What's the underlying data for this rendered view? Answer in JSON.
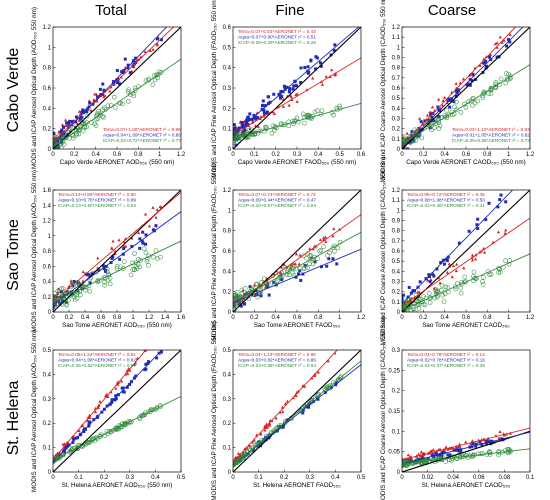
{
  "colors": {
    "terra": "#d62424",
    "aqua": "#1f2bb8",
    "icap": "#2f8a3a",
    "oneToOne": "#000000"
  },
  "columns": [
    {
      "title": "Total"
    },
    {
      "title": "Fine"
    },
    {
      "title": "Coarse"
    }
  ],
  "rows": [
    {
      "title": "Cabo Verde"
    },
    {
      "title": "Sao Tome"
    },
    {
      "title": "St. Helena"
    }
  ],
  "chart_data": [
    {
      "type": "scatter",
      "row": 0,
      "col": 0,
      "xlabel": "Capo Verde AERONET AOD₅₅₀ (550 nm)",
      "ylabel": "MODIS and ICAP Aerosol Optical Depth (AOD₅₅₀ 550 nm)",
      "xlim": [
        0,
        1.2
      ],
      "ylim": [
        0,
        1.2
      ],
      "xticks": [
        "0",
        "0.2",
        "0.4",
        "0.6",
        "0.8",
        "1",
        "1.2"
      ],
      "yticks": [
        "0",
        "0.2",
        "0.4",
        "0.6",
        "0.8",
        "1",
        "1.2"
      ],
      "legend_position": "bottom-right",
      "series": [
        {
          "name": "Terra=0.07+1.00*AERONET r² = 0.86",
          "color": "terra",
          "fit": [
            0.07,
            1.0
          ],
          "count": 70,
          "spread": 0.09
        },
        {
          "name": "Aqua=0.04+1.09*AERONET r² = 0.86",
          "color": "aqua",
          "fit": [
            0.04,
            1.09
          ],
          "count": 70,
          "spread": 0.09
        },
        {
          "name": "ICAP=0.02+0.72*AERONET r² = 0.77",
          "color": "icap",
          "fit": [
            0.02,
            0.72
          ],
          "count": 110,
          "spread": 0.08
        }
      ]
    },
    {
      "type": "scatter",
      "row": 0,
      "col": 1,
      "xlabel": "Capo Verde AERONET FAOD₅₅₀ (550 nm)",
      "ylabel": "MODIS and ICAP Fine Aerosol Optical Depth (FAOD₅₅₀ 550 nm)",
      "xlim": [
        0,
        0.6
      ],
      "ylim": [
        0,
        0.6
      ],
      "xticks": [
        "0",
        "0.1",
        "0.2",
        "0.3",
        "0.4",
        "0.5",
        "0.6"
      ],
      "yticks": [
        "0",
        "0.1",
        "0.2",
        "0.3",
        "0.4",
        "0.5",
        "0.6"
      ],
      "legend_position": "top-left",
      "series": [
        {
          "name": "Terra=0.07+0.63*AERONET r² = 0.43",
          "color": "terra",
          "fit": [
            0.07,
            0.63
          ],
          "count": 60,
          "spread": 0.08
        },
        {
          "name": "Aqua=0.07+0.90*AERONET r² = 0.51",
          "color": "aqua",
          "fit": [
            0.07,
            0.9
          ],
          "count": 90,
          "spread": 0.1
        },
        {
          "name": "ICAP=0.05+0.29*AERONET r² = 0.26",
          "color": "icap",
          "fit": [
            0.05,
            0.29
          ],
          "count": 90,
          "spread": 0.05
        }
      ]
    },
    {
      "type": "scatter",
      "row": 0,
      "col": 2,
      "xlabel": "Capo Verde AERONET CAOD₅₅₀ (550 nm)",
      "ylabel": "MODIS and ICAP Coarse Aerosol Optical Depth (CAOD₅₅₀ 550 nm)",
      "xlim": [
        0,
        1.2
      ],
      "ylim": [
        0,
        1.2
      ],
      "xticks": [
        "0",
        "0.2",
        "0.4",
        "0.6",
        "0.8",
        "1",
        "1.2"
      ],
      "yticks": [
        "0",
        "0.1",
        "0.2",
        "0.3",
        "0.4",
        "0.5",
        "0.6",
        "0.7",
        "0.8",
        "0.9",
        "1",
        "1.1",
        "1.2"
      ],
      "legend_position": "bottom-right",
      "series": [
        {
          "name": "Terra=0.03+1.10*AERONET r² = 0.83",
          "color": "terra",
          "fit": [
            0.03,
            1.1
          ],
          "count": 70,
          "spread": 0.08
        },
        {
          "name": "Aqua=0.01+1.05*AERONET r² = 0.82",
          "color": "aqua",
          "fit": [
            0.01,
            1.05
          ],
          "count": 70,
          "spread": 0.08
        },
        {
          "name": "ICAP=0.05+0.65*AERONET r² = 0.73",
          "color": "icap",
          "fit": [
            0.05,
            0.65
          ],
          "count": 110,
          "spread": 0.07
        }
      ]
    },
    {
      "type": "scatter",
      "row": 1,
      "col": 0,
      "xlabel": "Sao Tome AERONET AOD₅₅₀ (550 nm)",
      "ylabel": "MODIS and ICAP Aerosol Optical Depth (AOD₅₅₀ 550 nm)",
      "xlim": [
        0,
        1.6
      ],
      "ylim": [
        0,
        1.6
      ],
      "xticks": [
        "0",
        "0.2",
        "0.4",
        "0.6",
        "0.8",
        "1",
        "1.2",
        "1.4",
        "1.6"
      ],
      "yticks": [
        "0",
        "0.2",
        "0.4",
        "0.6",
        "0.8",
        "1",
        "1.2",
        "1.4",
        "1.6"
      ],
      "legend_position": "top-left",
      "series": [
        {
          "name": "Terra=0.13+0.90*AERONET r² = 0.80",
          "color": "terra",
          "fit": [
            0.13,
            0.9
          ],
          "count": 50,
          "spread": 0.1
        },
        {
          "name": "Aqua=0.10+0.76*AERONET r² = 0.89",
          "color": "aqua",
          "fit": [
            0.1,
            0.76
          ],
          "count": 50,
          "spread": 0.08
        },
        {
          "name": "ICAP=0.13+0.50*AERONET r² = 0.63",
          "color": "icap",
          "fit": [
            0.13,
            0.5
          ],
          "count": 110,
          "spread": 0.1
        }
      ]
    },
    {
      "type": "scatter",
      "row": 1,
      "col": 1,
      "xlabel": "Sao Tome AERONET FAOD₅₅₀",
      "ylabel": "MODIS and ICAP Fine Aerosol Optical Depth (FAOD₅₅₀ 550 nm)",
      "xlim": [
        0,
        1.2
      ],
      "ylim": [
        0,
        1.2
      ],
      "xticks": [
        "0",
        "0.2",
        "0.4",
        "0.6",
        "0.8",
        "1",
        "1.2"
      ],
      "yticks": [
        "0",
        "0.2",
        "0.4",
        "0.6",
        "0.8",
        "1",
        "1.2"
      ],
      "legend_position": "top-left",
      "series": [
        {
          "name": "Terra=0.07+0.74*AERONET r² = 0.74",
          "color": "terra",
          "fit": [
            0.07,
            0.74
          ],
          "count": 50,
          "spread": 0.08
        },
        {
          "name": "Aqua=0.09+0.44*AERONET r² = 0.47",
          "color": "aqua",
          "fit": [
            0.09,
            0.44
          ],
          "count": 40,
          "spread": 0.08
        },
        {
          "name": "ICAP=0.10+0.57*AERONET r² = 0.53",
          "color": "icap",
          "fit": [
            0.1,
            0.57
          ],
          "count": 110,
          "spread": 0.09
        }
      ]
    },
    {
      "type": "scatter",
      "row": 1,
      "col": 2,
      "xlabel": "Sao Tome AERONET CAOD₅₅₀",
      "ylabel": "MODIS and ICAP Coarse Aerosol Optical Depth (CAOD₅₅₀ 550 nm)",
      "xlim": [
        0,
        1.2
      ],
      "ylim": [
        0,
        1.2
      ],
      "xticks": [
        "0",
        "0.2",
        "0.4",
        "0.6",
        "0.8",
        "1",
        "1.2"
      ],
      "yticks": [
        "0",
        "0.1",
        "0.2",
        "0.3",
        "0.4",
        "0.5",
        "0.6",
        "0.7",
        "0.8",
        "0.9",
        "1",
        "1.1",
        "1.2"
      ],
      "legend_position": "top-left",
      "series": [
        {
          "name": "Terra=0.06+0.72*AERONET r² = 0.45",
          "color": "terra",
          "fit": [
            0.06,
            0.72
          ],
          "count": 45,
          "spread": 0.09
        },
        {
          "name": "Aqua=0.08+1.08*AERONET r² = 0.50",
          "color": "aqua",
          "fit": [
            0.08,
            1.08
          ],
          "count": 40,
          "spread": 0.1
        },
        {
          "name": "ICAP=0.02+0.46*AERONET r² = 0.41",
          "color": "icap",
          "fit": [
            0.02,
            0.46
          ],
          "count": 110,
          "spread": 0.08
        }
      ]
    },
    {
      "type": "scatter",
      "row": 2,
      "col": 0,
      "xlabel": "St. Helena AERONET AOD₅₅₀ (550 nm)",
      "ylabel": "MODIS and ICAP Aerosol Optical Depth (AOD₅₅₀ 550 nm)",
      "xlim": [
        0,
        0.5
      ],
      "ylim": [
        0,
        0.5
      ],
      "xticks": [
        "0",
        "0.1",
        "0.2",
        "0.3",
        "0.4",
        "0.5"
      ],
      "yticks": [
        "0",
        "0.1",
        "0.2",
        "0.3",
        "0.4",
        "0.5"
      ],
      "legend_position": "top-left",
      "series": [
        {
          "name": "Terra=0.05+1.24*AERONET r² = 0.81",
          "color": "terra",
          "fit": [
            0.05,
            1.24
          ],
          "count": 60,
          "spread": 0.03
        },
        {
          "name": "Aqua=0.04+1.08*AERONET r² = 0.82",
          "color": "aqua",
          "fit": [
            0.04,
            1.08
          ],
          "count": 60,
          "spread": 0.03
        },
        {
          "name": "ICAP=0.05+0.52*AERONET r² = 0.67",
          "color": "icap",
          "fit": [
            0.05,
            0.52
          ],
          "count": 110,
          "spread": 0.02
        }
      ]
    },
    {
      "type": "scatter",
      "row": 2,
      "col": 1,
      "xlabel": "St. Helena AERONET FAOD₅₅₀",
      "ylabel": "MODIS and ICAP Fine Aerosol Optical Depth (FAOD₅₅₀ 550 nm)",
      "xlim": [
        0,
        0.5
      ],
      "ylim": [
        0,
        0.5
      ],
      "xticks": [
        "0",
        "0.1",
        "0.2",
        "0.3",
        "0.4",
        "0.5"
      ],
      "yticks": [
        "0",
        "0.1",
        "0.2",
        "0.3",
        "0.4",
        "0.5"
      ],
      "legend_position": "top-left",
      "series": [
        {
          "name": "Terra=0.04+1.13*AERONET r² = 0.80",
          "color": "terra",
          "fit": [
            0.04,
            1.13
          ],
          "count": 60,
          "spread": 0.03
        },
        {
          "name": "Aqua=0.03+0.82*AERONET r² = 0.86",
          "color": "aqua",
          "fit": [
            0.03,
            0.82
          ],
          "count": 60,
          "spread": 0.025
        },
        {
          "name": "ICAP=0.03+0.85*AERONET r² = 0.84",
          "color": "icap",
          "fit": [
            0.03,
            0.85
          ],
          "count": 100,
          "spread": 0.02
        }
      ]
    },
    {
      "type": "scatter",
      "row": 2,
      "col": 2,
      "xlabel": "St. Helena AERONET CAOD₅₅₀",
      "ylabel": "MODIS and ICAP Coarse Aerosol Optical Depth (CAOD₅₅₀ 550 nm)",
      "xlim": [
        0,
        0.1
      ],
      "ylim": [
        0,
        0.3
      ],
      "xticks": [
        "0",
        "0.02",
        "0.04",
        "0.06",
        "0.08",
        "0.1"
      ],
      "yticks": [
        "0",
        "0.05",
        "0.1",
        "0.15",
        "0.2",
        "0.25",
        "0.3"
      ],
      "legend_position": "top-left",
      "series": [
        {
          "name": "Terra=0.03+0.78*AERONET r² = 0.14",
          "color": "terra",
          "fit": [
            0.03,
            0.78
          ],
          "count": 70,
          "spread": 0.03
        },
        {
          "name": "Aqua=0.02+0.78*AERONET r² = 0.16",
          "color": "aqua",
          "fit": [
            0.02,
            0.78
          ],
          "count": 70,
          "spread": 0.03
        },
        {
          "name": "ICAP=0.02+0.37*AERONET r² = 0.25",
          "color": "icap",
          "fit": [
            0.02,
            0.37
          ],
          "count": 120,
          "spread": 0.025
        }
      ]
    }
  ]
}
